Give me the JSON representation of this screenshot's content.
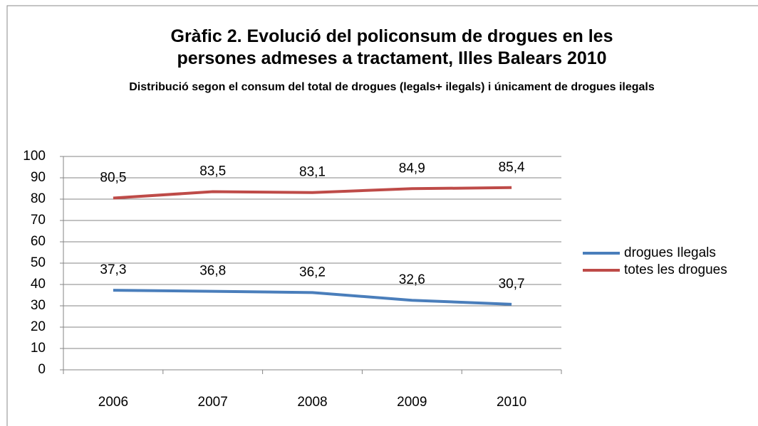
{
  "chart_data": {
    "type": "line",
    "title": "Gràfic 2. Evolució del policonsum de drogues en les persones admeses a tractament, Illes Balears 2010",
    "subtitle": "Distribució segon el consum del total de drogues (legals+ ilegals) i únicament de drogues ilegals",
    "categories": [
      "2006",
      "2007",
      "2008",
      "2009",
      "2010"
    ],
    "series": [
      {
        "name": "drogues Ilegals",
        "color": "#4a7ebb",
        "values": [
          37.3,
          36.8,
          36.2,
          32.6,
          30.7
        ],
        "value_labels": [
          "37,3",
          "36,8",
          "36,2",
          "32,6",
          "30,7"
        ]
      },
      {
        "name": "totes les drogues",
        "color": "#be4b48",
        "values": [
          80.5,
          83.5,
          83.1,
          84.9,
          85.4
        ],
        "value_labels": [
          "80,5",
          "83,5",
          "83,1",
          "84,9",
          "85,4"
        ]
      }
    ],
    "ylim": [
      0,
      100
    ],
    "yticks": [
      0,
      10,
      20,
      30,
      40,
      50,
      60,
      70,
      80,
      90,
      100
    ],
    "grid": true,
    "legend": "right"
  }
}
